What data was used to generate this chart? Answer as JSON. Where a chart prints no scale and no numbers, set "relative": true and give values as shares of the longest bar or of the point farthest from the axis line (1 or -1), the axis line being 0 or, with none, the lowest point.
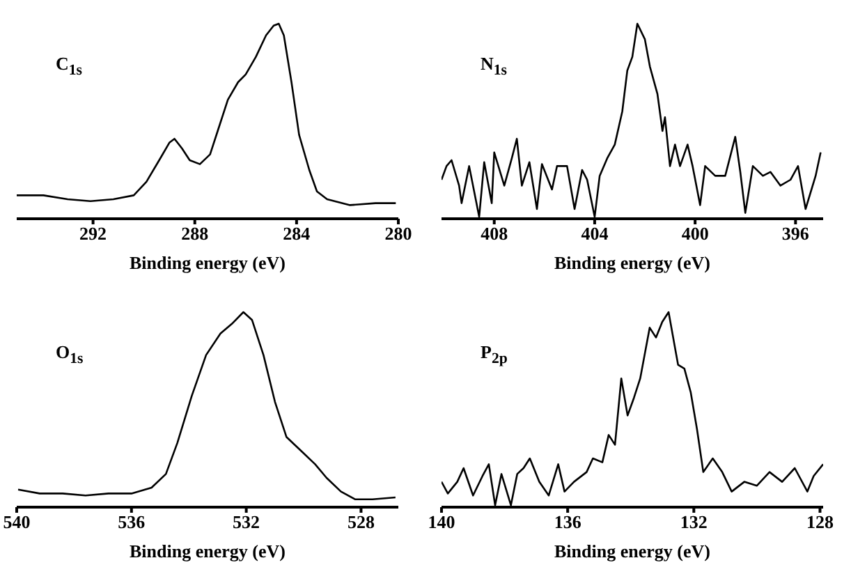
{
  "chart_data": [
    {
      "type": "line",
      "xlabel": "Binding energy (eV)",
      "annotations": [
        "C$_{1s}$"
      ],
      "relative": true,
      "xlim": [
        295,
        280
      ],
      "xticks": [
        292,
        288,
        284,
        280
      ],
      "series": [
        {
          "color": "#000000",
          "x": [
            295.0,
            293.95,
            293.0,
            292.1,
            291.2,
            290.4,
            289.9,
            289.4,
            289.0,
            288.8,
            288.5,
            288.2,
            287.8,
            287.4,
            287.1,
            286.7,
            286.3,
            286.0,
            285.6,
            285.2,
            284.9,
            284.7,
            284.5,
            284.2,
            283.9,
            283.5,
            283.2,
            282.8,
            281.9,
            280.9,
            280.1
          ],
          "values": [
            0.12,
            0.12,
            0.1,
            0.09,
            0.1,
            0.12,
            0.19,
            0.3,
            0.39,
            0.41,
            0.36,
            0.3,
            0.28,
            0.33,
            0.45,
            0.61,
            0.7,
            0.74,
            0.83,
            0.94,
            0.99,
            1.0,
            0.94,
            0.7,
            0.43,
            0.25,
            0.14,
            0.1,
            0.07,
            0.08,
            0.08
          ]
        }
      ]
    },
    {
      "type": "line",
      "xlabel": "Binding energy (eV)",
      "annotations": [
        "N$_{1s}$"
      ],
      "relative": true,
      "xlim": [
        410.1,
        394.9
      ],
      "xticks": [
        408,
        404,
        400,
        396
      ],
      "series": [
        {
          "color": "#000000",
          "x": [
            410.1,
            409.9,
            409.7,
            409.4,
            409.3,
            409.0,
            408.6,
            408.4,
            408.1,
            408.0,
            407.6,
            407.3,
            407.1,
            406.9,
            406.6,
            406.3,
            406.1,
            405.7,
            405.5,
            405.1,
            404.8,
            404.5,
            404.3,
            404.0,
            403.8,
            403.5,
            403.2,
            402.9,
            402.7,
            402.5,
            402.3,
            402.0,
            401.8,
            401.5,
            401.3,
            401.2,
            401.0,
            400.8,
            400.6,
            400.3,
            400.1,
            399.8,
            399.6,
            399.2,
            398.8,
            398.4,
            398.2,
            398.0,
            397.7,
            397.3,
            397.0,
            396.6,
            396.2,
            395.9,
            395.6,
            395.2,
            395.0
          ],
          "values": [
            0.2,
            0.27,
            0.3,
            0.17,
            0.08,
            0.27,
            0.01,
            0.29,
            0.08,
            0.34,
            0.17,
            0.31,
            0.41,
            0.17,
            0.29,
            0.05,
            0.28,
            0.15,
            0.27,
            0.27,
            0.05,
            0.25,
            0.2,
            0.01,
            0.22,
            0.31,
            0.38,
            0.55,
            0.76,
            0.83,
            1.0,
            0.92,
            0.78,
            0.64,
            0.45,
            0.52,
            0.27,
            0.38,
            0.27,
            0.38,
            0.27,
            0.07,
            0.27,
            0.22,
            0.22,
            0.42,
            0.24,
            0.03,
            0.27,
            0.22,
            0.24,
            0.17,
            0.2,
            0.27,
            0.05,
            0.22,
            0.34
          ]
        }
      ]
    },
    {
      "type": "line",
      "xlabel": "Binding energy (eV)",
      "annotations": [
        "O$_{1s}$"
      ],
      "relative": true,
      "xlim": [
        540,
        526.7
      ],
      "xticks": [
        540,
        536,
        532,
        528
      ],
      "series": [
        {
          "color": "#000000",
          "x": [
            539.95,
            539.2,
            538.4,
            537.6,
            536.8,
            536.0,
            535.3,
            534.8,
            534.4,
            533.9,
            533.4,
            532.9,
            532.5,
            532.1,
            531.8,
            531.4,
            531.0,
            530.6,
            530.1,
            529.6,
            529.2,
            528.7,
            528.2,
            527.6,
            526.8
          ],
          "values": [
            0.09,
            0.07,
            0.07,
            0.06,
            0.07,
            0.07,
            0.1,
            0.17,
            0.33,
            0.57,
            0.78,
            0.89,
            0.94,
            1.0,
            0.96,
            0.78,
            0.54,
            0.36,
            0.29,
            0.22,
            0.15,
            0.08,
            0.04,
            0.04,
            0.05
          ]
        }
      ]
    },
    {
      "type": "line",
      "xlabel": "Binding energy (eV)",
      "annotations": [
        "P$_{2p}$"
      ],
      "relative": true,
      "xlim": [
        140,
        127.9
      ],
      "xticks": [
        140,
        136,
        132,
        128
      ],
      "series": [
        {
          "color": "#000000",
          "x": [
            140.0,
            139.8,
            139.5,
            139.3,
            139.0,
            138.7,
            138.5,
            138.3,
            138.1,
            137.8,
            137.6,
            137.4,
            137.2,
            136.9,
            136.6,
            136.3,
            136.1,
            135.8,
            135.4,
            135.2,
            134.9,
            134.7,
            134.5,
            134.3,
            134.1,
            133.9,
            133.7,
            133.4,
            133.2,
            133.0,
            132.8,
            132.5,
            132.3,
            132.1,
            131.9,
            131.7,
            131.4,
            131.1,
            130.8,
            130.4,
            130.0,
            129.6,
            129.2,
            128.8,
            128.4,
            128.2,
            127.9
          ],
          "values": [
            0.13,
            0.07,
            0.13,
            0.2,
            0.06,
            0.16,
            0.22,
            0.01,
            0.17,
            0.01,
            0.17,
            0.2,
            0.25,
            0.13,
            0.06,
            0.22,
            0.08,
            0.13,
            0.18,
            0.25,
            0.23,
            0.37,
            0.32,
            0.66,
            0.47,
            0.56,
            0.66,
            0.92,
            0.87,
            0.95,
            1.0,
            0.73,
            0.71,
            0.59,
            0.4,
            0.18,
            0.25,
            0.18,
            0.08,
            0.13,
            0.11,
            0.18,
            0.13,
            0.2,
            0.08,
            0.16,
            0.22
          ]
        }
      ]
    }
  ]
}
